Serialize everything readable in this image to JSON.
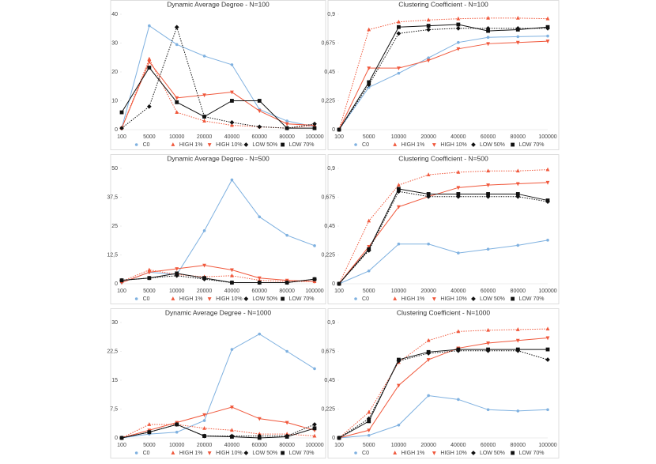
{
  "chart_data": [
    {
      "type": "line",
      "title": "Dynamic Average Degree - N=100",
      "categories": [
        "100",
        "5000",
        "10000",
        "20000",
        "40000",
        "60000",
        "80000",
        "100000"
      ],
      "ylim": [
        0,
        40
      ],
      "yticks": [
        0,
        10,
        20,
        30,
        40
      ],
      "grid": false,
      "series": [
        {
          "name": "C0",
          "color": "#7fb1e0",
          "dashed": false,
          "marker": "circle",
          "values": [
            0.5,
            36,
            29.5,
            25.5,
            22.5,
            7,
            3,
            1
          ]
        },
        {
          "name": "HIGH 1%",
          "color": "#f0583c",
          "dashed": true,
          "marker": "triangle",
          "values": [
            0.5,
            24.5,
            6,
            3,
            1.5,
            1,
            0.5,
            1.5
          ]
        },
        {
          "name": "HIGH 10%",
          "color": "#f0583c",
          "dashed": false,
          "marker": "star",
          "values": [
            0.5,
            23.5,
            11,
            12,
            13,
            6.5,
            2,
            1.5
          ]
        },
        {
          "name": "LOW 50%",
          "color": "#111111",
          "dashed": true,
          "marker": "diamond",
          "values": [
            0.5,
            8,
            35.5,
            4.5,
            2.5,
            1,
            0.5,
            2
          ]
        },
        {
          "name": "LOW 70%",
          "color": "#111111",
          "dashed": false,
          "marker": "square",
          "values": [
            6,
            21.5,
            9.5,
            4.5,
            10,
            10,
            0.5,
            0.5
          ]
        }
      ]
    },
    {
      "type": "line",
      "title": "Clustering Coefficient - N=100",
      "categories": [
        "100",
        "5000",
        "10000",
        "20000",
        "40000",
        "60000",
        "80000",
        "100000"
      ],
      "ylim": [
        0,
        0.9
      ],
      "yticks": [
        0,
        {
          "value": 0.225,
          "label": "0,225"
        },
        {
          "value": 0.45,
          "label": "0,45"
        },
        {
          "value": 0.675,
          "label": "0,675"
        },
        {
          "value": 0.9,
          "label": "0,9"
        }
      ],
      "grid": false,
      "series": [
        {
          "name": "C0",
          "color": "#7fb1e0",
          "dashed": false,
          "marker": "circle",
          "values": [
            0,
            0.33,
            0.44,
            0.56,
            0.68,
            0.72,
            0.725,
            0.73
          ]
        },
        {
          "name": "HIGH 1%",
          "color": "#f0583c",
          "dashed": true,
          "marker": "triangle",
          "values": [
            0,
            0.78,
            0.84,
            0.855,
            0.865,
            0.87,
            0.87,
            0.865
          ]
        },
        {
          "name": "HIGH 10%",
          "color": "#f0583c",
          "dashed": false,
          "marker": "star",
          "values": [
            0,
            0.48,
            0.48,
            0.54,
            0.63,
            0.67,
            0.68,
            0.69
          ]
        },
        {
          "name": "LOW 50%",
          "color": "#111111",
          "dashed": true,
          "marker": "diamond",
          "values": [
            0,
            0.35,
            0.75,
            0.78,
            0.79,
            0.79,
            0.79,
            0.79
          ]
        },
        {
          "name": "LOW 70%",
          "color": "#111111",
          "dashed": false,
          "marker": "square",
          "values": [
            0,
            0.37,
            0.8,
            0.81,
            0.82,
            0.77,
            0.78,
            0.8
          ]
        }
      ]
    },
    {
      "type": "line",
      "title": "Dynamic Average Degree - N=500",
      "categories": [
        "100",
        "5000",
        "10000",
        "20000",
        "40000",
        "60000",
        "80000",
        "100000"
      ],
      "ylim": [
        0,
        50
      ],
      "yticks": [
        0,
        {
          "value": 12.5,
          "label": "12,5"
        },
        25,
        {
          "value": 37.5,
          "label": "37,5"
        },
        50
      ],
      "grid": false,
      "series": [
        {
          "name": "C0",
          "color": "#7fb1e0",
          "dashed": false,
          "marker": "circle",
          "values": [
            0.5,
            5,
            4,
            23,
            45,
            29,
            21,
            16.5
          ]
        },
        {
          "name": "HIGH 1%",
          "color": "#f0583c",
          "dashed": true,
          "marker": "triangle",
          "values": [
            1,
            6,
            4,
            3,
            3.5,
            1.5,
            1,
            1
          ]
        },
        {
          "name": "HIGH 10%",
          "color": "#f0583c",
          "dashed": false,
          "marker": "star",
          "values": [
            0.5,
            5,
            6.5,
            8,
            6,
            2.5,
            1.5,
            1
          ]
        },
        {
          "name": "LOW 50%",
          "color": "#111111",
          "dashed": true,
          "marker": "diamond",
          "values": [
            1.5,
            2.5,
            3.5,
            2,
            0.5,
            0.5,
            0.5,
            2
          ]
        },
        {
          "name": "LOW 70%",
          "color": "#111111",
          "dashed": false,
          "marker": "square",
          "values": [
            1.5,
            2.5,
            4.5,
            2.5,
            0.5,
            0.5,
            0.5,
            2
          ]
        }
      ]
    },
    {
      "type": "line",
      "title": "Clustering Coefficient - N=500",
      "categories": [
        "100",
        "5000",
        "10000",
        "20000",
        "40000",
        "60000",
        "80000",
        "100000"
      ],
      "ylim": [
        0,
        0.9
      ],
      "yticks": [
        0,
        {
          "value": 0.225,
          "label": "0,225"
        },
        {
          "value": 0.45,
          "label": "0,45"
        },
        {
          "value": 0.675,
          "label": "0,675"
        },
        {
          "value": 0.9,
          "label": "0,9"
        }
      ],
      "grid": false,
      "series": [
        {
          "name": "C0",
          "color": "#7fb1e0",
          "dashed": false,
          "marker": "circle",
          "values": [
            0,
            0.1,
            0.31,
            0.31,
            0.24,
            0.27,
            0.3,
            0.34
          ]
        },
        {
          "name": "HIGH 1%",
          "color": "#f0583c",
          "dashed": true,
          "marker": "triangle",
          "values": [
            0,
            0.49,
            0.77,
            0.85,
            0.87,
            0.88,
            0.88,
            0.89
          ]
        },
        {
          "name": "HIGH 10%",
          "color": "#f0583c",
          "dashed": false,
          "marker": "star",
          "values": [
            0,
            0.29,
            0.6,
            0.68,
            0.75,
            0.77,
            0.78,
            0.79
          ]
        },
        {
          "name": "LOW 50%",
          "color": "#111111",
          "dashed": true,
          "marker": "diamond",
          "values": [
            0,
            0.26,
            0.72,
            0.68,
            0.68,
            0.68,
            0.68,
            0.64
          ]
        },
        {
          "name": "LOW 70%",
          "color": "#111111",
          "dashed": false,
          "marker": "square",
          "values": [
            0,
            0.27,
            0.74,
            0.7,
            0.7,
            0.7,
            0.7,
            0.65
          ]
        }
      ]
    },
    {
      "type": "line",
      "title": "Dynamic Average Degree - N=1000",
      "categories": [
        "100",
        "5000",
        "10000",
        "20000",
        "40000",
        "60000",
        "80000",
        "100000"
      ],
      "ylim": [
        0,
        30
      ],
      "yticks": [
        0,
        {
          "value": 7.5,
          "label": "7,5"
        },
        15,
        {
          "value": 22.5,
          "label": "22,5"
        },
        30
      ],
      "grid": false,
      "series": [
        {
          "name": "C0",
          "color": "#7fb1e0",
          "dashed": false,
          "marker": "circle",
          "values": [
            0,
            1,
            1.5,
            4.5,
            23,
            27,
            22.5,
            18
          ]
        },
        {
          "name": "HIGH 1%",
          "color": "#f0583c",
          "dashed": true,
          "marker": "triangle",
          "values": [
            0,
            3.5,
            3.5,
            2.5,
            2,
            1,
            1,
            0.5
          ]
        },
        {
          "name": "HIGH 10%",
          "color": "#f0583c",
          "dashed": false,
          "marker": "star",
          "values": [
            0,
            2,
            4,
            6,
            8,
            5,
            4,
            2
          ]
        },
        {
          "name": "LOW 50%",
          "color": "#111111",
          "dashed": true,
          "marker": "diamond",
          "values": [
            0,
            1.5,
            3.5,
            0.5,
            0.5,
            0.5,
            0.5,
            3.5
          ]
        },
        {
          "name": "LOW 70%",
          "color": "#111111",
          "dashed": false,
          "marker": "square",
          "values": [
            0,
            1.5,
            3.5,
            0.5,
            0.3,
            0,
            0.3,
            2.5
          ]
        }
      ]
    },
    {
      "type": "line",
      "title": "Clustering Coefficient - N=1000",
      "categories": [
        "100",
        "5000",
        "10000",
        "20000",
        "40000",
        "60000",
        "80000",
        "100000"
      ],
      "ylim": [
        0,
        0.9
      ],
      "yticks": [
        0,
        {
          "value": 0.225,
          "label": "0,225"
        },
        {
          "value": 0.45,
          "label": "0,45"
        },
        {
          "value": 0.675,
          "label": "0,675"
        },
        {
          "value": 0.9,
          "label": "0,9"
        }
      ],
      "grid": false,
      "series": [
        {
          "name": "C0",
          "color": "#7fb1e0",
          "dashed": false,
          "marker": "circle",
          "values": [
            0,
            0.02,
            0.1,
            0.33,
            0.3,
            0.22,
            0.21,
            0.22
          ]
        },
        {
          "name": "HIGH 1%",
          "color": "#f0583c",
          "dashed": true,
          "marker": "triangle",
          "values": [
            0,
            0.2,
            0.59,
            0.76,
            0.83,
            0.84,
            0.845,
            0.85
          ]
        },
        {
          "name": "HIGH 10%",
          "color": "#f0583c",
          "dashed": false,
          "marker": "star",
          "values": [
            0,
            0.06,
            0.41,
            0.61,
            0.7,
            0.74,
            0.76,
            0.78
          ]
        },
        {
          "name": "LOW 50%",
          "color": "#111111",
          "dashed": true,
          "marker": "diamond",
          "values": [
            0,
            0.15,
            0.6,
            0.66,
            0.68,
            0.68,
            0.68,
            0.61
          ]
        },
        {
          "name": "LOW 70%",
          "color": "#111111",
          "dashed": false,
          "marker": "square",
          "values": [
            0,
            0.13,
            0.61,
            0.67,
            0.69,
            0.69,
            0.69,
            0.69
          ]
        }
      ]
    }
  ]
}
